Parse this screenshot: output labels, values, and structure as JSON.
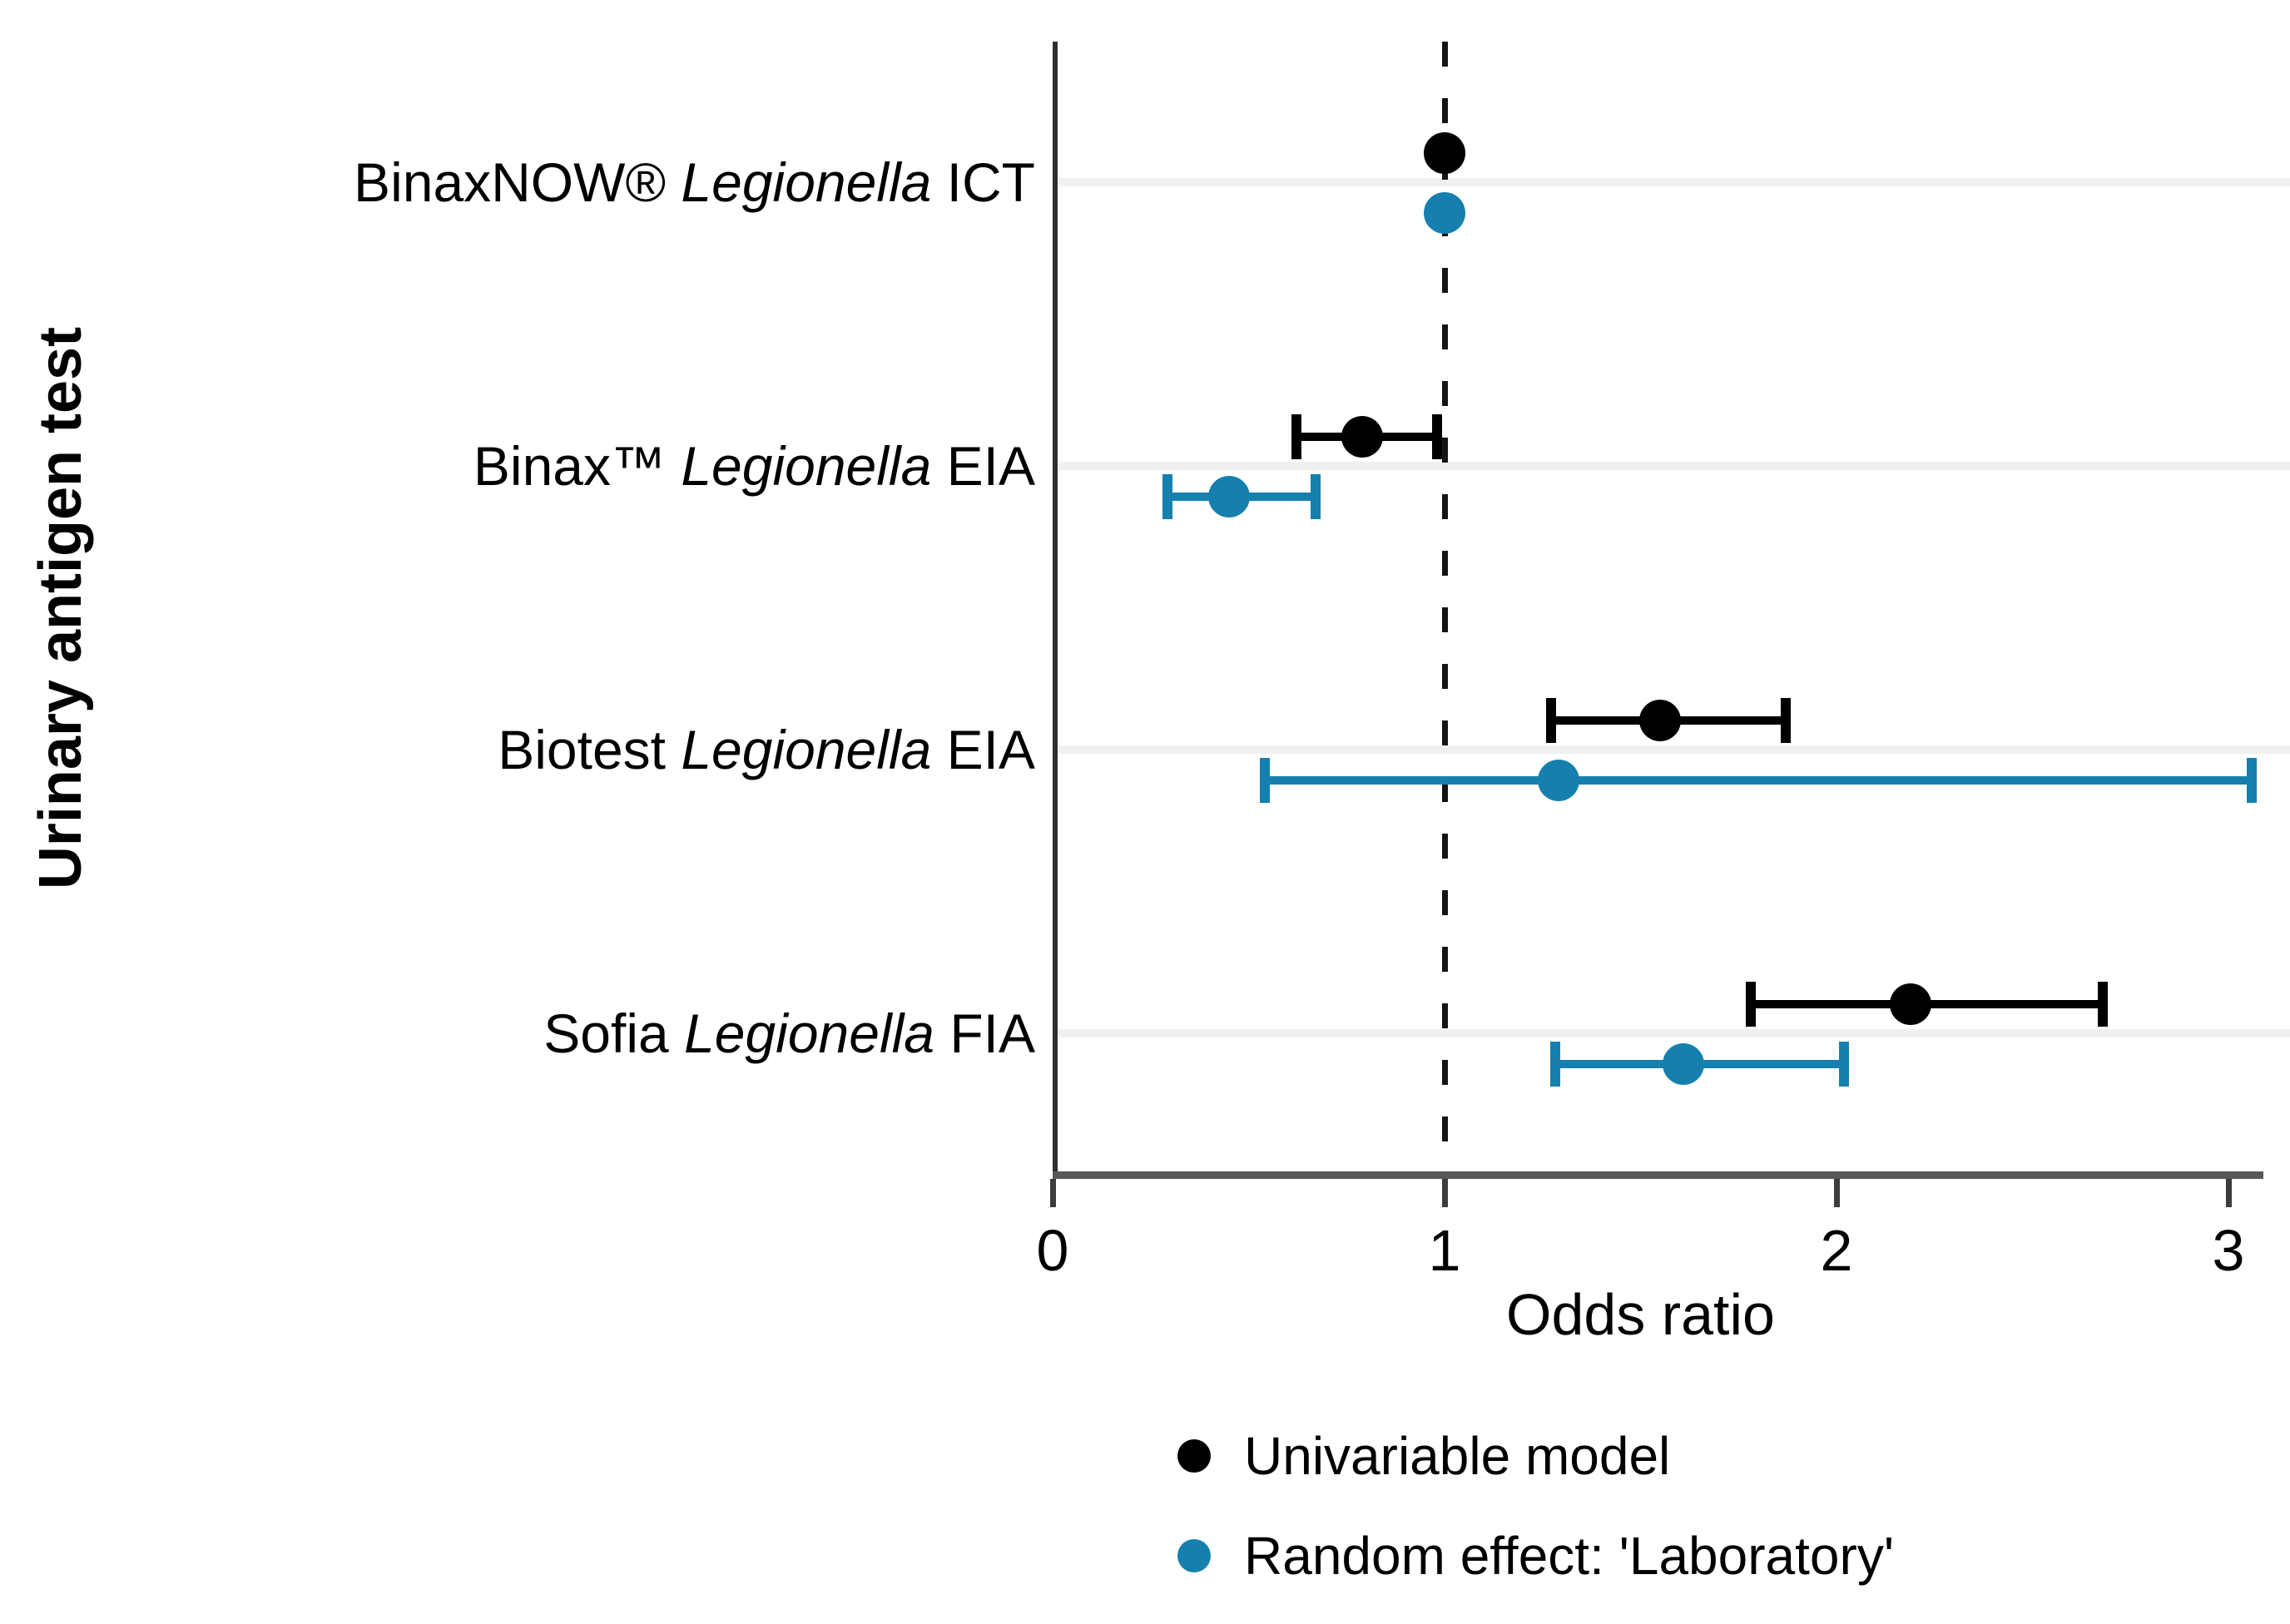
{
  "y_axis_title": "Urinary antigen test",
  "x_axis": {
    "title": "Odds ratio",
    "ticks": [
      0,
      1,
      2,
      3
    ]
  },
  "legend": {
    "items": [
      {
        "label": "Univariable model",
        "color": "#000000"
      },
      {
        "label": "Random effect: 'Laboratory'",
        "color": "#1580ad"
      }
    ]
  },
  "chart_data": {
    "type": "scatter",
    "subtype": "forest_plot_odds_ratios",
    "title": "",
    "xlabel": "Odds ratio",
    "ylabel": "Urinary antigen test",
    "xlim": [
      0,
      3.1
    ],
    "x_ticks": [
      0,
      1,
      2,
      3
    ],
    "reference_line_x": 1,
    "grid": "horizontal-light",
    "legend_position": "bottom",
    "categories": [
      {
        "pre": "BinaxNOW® ",
        "italic": "Legionella",
        "post": " ICT"
      },
      {
        "pre": "Binax™ ",
        "italic": "Legionella",
        "post": " EIA"
      },
      {
        "pre": "Biotest ",
        "italic": "Legionella",
        "post": " EIA"
      },
      {
        "pre": "Sofia ",
        "italic": "Legionella",
        "post": " FIA"
      }
    ],
    "series": [
      {
        "name": "Univariable model",
        "color": "#000000",
        "values": [
          {
            "or": 1.0,
            "ci_low": null,
            "ci_high": null
          },
          {
            "or": 0.79,
            "ci_low": 0.62,
            "ci_high": 0.98
          },
          {
            "or": 1.55,
            "ci_low": 1.27,
            "ci_high": 1.87
          },
          {
            "or": 2.19,
            "ci_low": 1.78,
            "ci_high": 2.68
          }
        ]
      },
      {
        "name": "Random effect: 'Laboratory'",
        "color": "#1580ad",
        "values": [
          {
            "or": 1.0,
            "ci_low": null,
            "ci_high": null
          },
          {
            "or": 0.45,
            "ci_low": 0.29,
            "ci_high": 0.67
          },
          {
            "or": 1.29,
            "ci_low": 0.54,
            "ci_high": 3.06
          },
          {
            "or": 1.61,
            "ci_low": 1.28,
            "ci_high": 2.02
          }
        ]
      }
    ]
  }
}
